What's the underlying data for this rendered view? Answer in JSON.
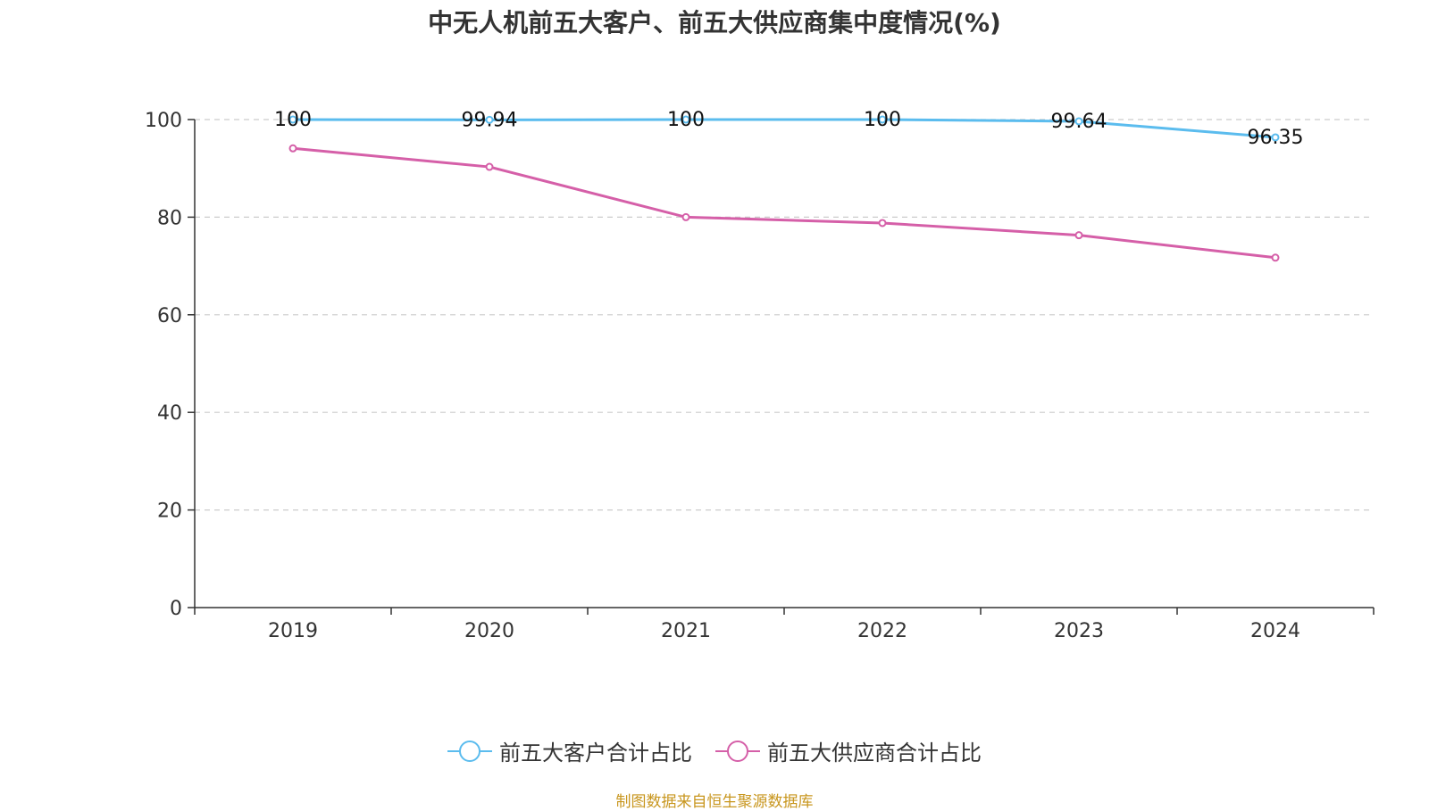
{
  "title": "中无人机前五大客户、前五大供应商集中度情况(%)",
  "source": "制图数据来自恒生聚源数据库",
  "chart_data": {
    "type": "line",
    "title": "中无人机前五大客户、前五大供应商集中度情况(%)",
    "categories": [
      "2019",
      "2020",
      "2021",
      "2022",
      "2023",
      "2024"
    ],
    "ylim": [
      0,
      100
    ],
    "yticks": [
      0,
      20,
      40,
      60,
      80,
      100
    ],
    "grid": true,
    "legend_position": "bottom",
    "series": [
      {
        "name": "前五大客户合计占比",
        "color": "#5bbcee",
        "values": [
          100,
          99.94,
          100,
          100,
          99.64,
          96.35
        ],
        "labels": [
          "100",
          "99.94",
          "100",
          "100",
          "99.64",
          "96.35"
        ],
        "show_labels": true
      },
      {
        "name": "前五大供应商合计占比",
        "color": "#d55fa8",
        "values": [
          94.1,
          90.3,
          80.0,
          78.8,
          76.3,
          71.7
        ],
        "show_labels": false
      }
    ]
  }
}
